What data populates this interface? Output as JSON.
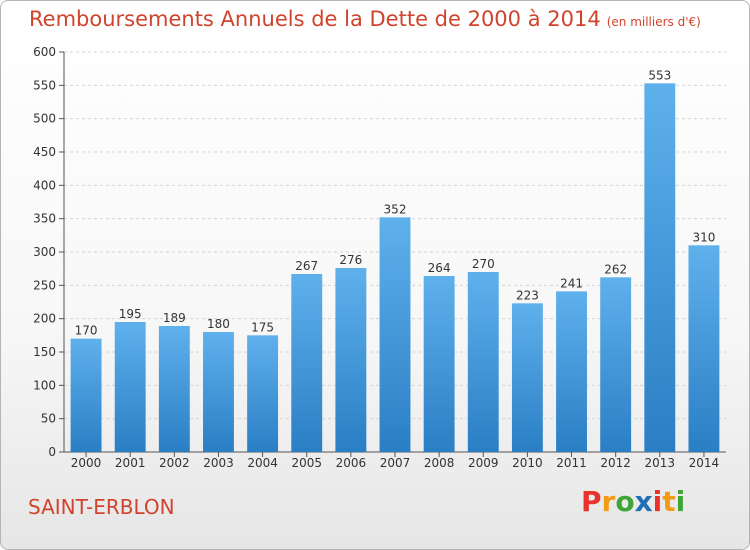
{
  "header": {
    "title": "Remboursements Annuels de la Dette de 2000 à 2014",
    "subtitle": "(en milliers d'€)"
  },
  "footer": {
    "place": "SAINT-ERBLON",
    "logo_text": "Proxiti",
    "logo_colors": [
      "#e8322a",
      "#f39c12",
      "#3fa535",
      "#1f6fb5",
      "#e8322a",
      "#f39c12",
      "#3fa535"
    ]
  },
  "colors": {
    "bar": "#4a9de0",
    "title": "#d0442d"
  },
  "chart_data": {
    "type": "bar",
    "title": "Remboursements Annuels de la Dette de 2000 à 2014",
    "categories": [
      "2000",
      "2001",
      "2002",
      "2003",
      "2004",
      "2005",
      "2006",
      "2007",
      "2008",
      "2009",
      "2010",
      "2011",
      "2012",
      "2013",
      "2014"
    ],
    "values": [
      170,
      195,
      189,
      180,
      175,
      267,
      276,
      352,
      264,
      270,
      223,
      241,
      262,
      553,
      310
    ],
    "ylim": [
      0,
      600
    ],
    "yticks": [
      0,
      50,
      100,
      150,
      200,
      250,
      300,
      350,
      400,
      450,
      500,
      550,
      600
    ],
    "grid": true
  }
}
